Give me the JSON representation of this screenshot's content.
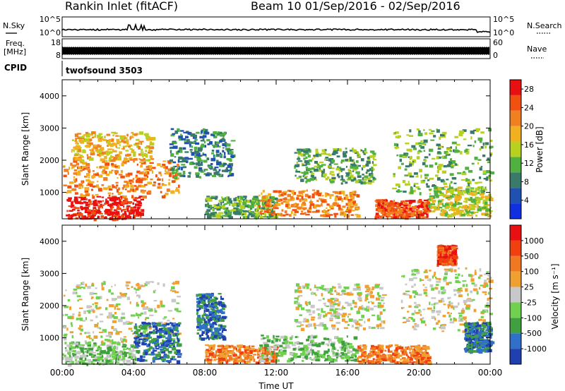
{
  "header": {
    "station": "Rankin Inlet (fitACF)",
    "beam_range": "Beam 10  01/Sep/2016 - 02/Sep/2016"
  },
  "aux_panels": {
    "nsky_label": "N.Sky",
    "nsky_ticks": [
      "10^5",
      "10^0"
    ],
    "nsearch_label": "N.Search",
    "freq_label_1": "Freq.",
    "freq_label_2": "[MHz]",
    "freq_ticks": [
      "18",
      "8"
    ],
    "nave_label": "Nave",
    "nave_ticks": [
      "60",
      "0"
    ],
    "cpid_label": "CPID",
    "cpid_value": "twofsound 3503"
  },
  "chart_data": [
    {
      "type": "heatmap",
      "quantity": "Power",
      "ylabel": "Slant Range [km]",
      "ylim": [
        180,
        4500
      ],
      "yticks": [
        "1000",
        "2000",
        "3000",
        "4000"
      ],
      "xlim_hours": [
        0,
        24
      ],
      "colorbar_label": "Power [dB]",
      "colorbar_ticks": [
        "4",
        "8",
        "12",
        "16",
        "20",
        "24",
        "28"
      ],
      "colorbar_range": [
        0,
        30
      ],
      "colors": [
        "#1030e0",
        "#2050b0",
        "#3a7a6a",
        "#50b040",
        "#b8d020",
        "#f0b020",
        "#f08020",
        "#f05010",
        "#e81010"
      ],
      "echo_regions": [
        {
          "t": [
            0.2,
            4.4
          ],
          "r": [
            200,
            900
          ],
          "level": 8
        },
        {
          "t": [
            0.0,
            6.5
          ],
          "r": [
            900,
            2000
          ],
          "level": 6
        },
        {
          "t": [
            0.5,
            5.0
          ],
          "r": [
            2000,
            2900
          ],
          "level": 5
        },
        {
          "t": [
            6.0,
            9.5
          ],
          "r": [
            1500,
            3000
          ],
          "level": 2
        },
        {
          "t": [
            8.0,
            12.0
          ],
          "r": [
            250,
            900
          ],
          "level": 3
        },
        {
          "t": [
            11.0,
            16.5
          ],
          "r": [
            300,
            1100
          ],
          "level": 6
        },
        {
          "t": [
            13.0,
            17.5
          ],
          "r": [
            1300,
            2400
          ],
          "level": 3
        },
        {
          "t": [
            17.5,
            20.5
          ],
          "r": [
            250,
            800
          ],
          "level": 7
        },
        {
          "t": [
            18.5,
            24.0
          ],
          "r": [
            1000,
            3000
          ],
          "level": 3
        },
        {
          "t": [
            20.5,
            24.0
          ],
          "r": [
            300,
            1200
          ],
          "level": 4
        }
      ]
    },
    {
      "type": "heatmap",
      "quantity": "Velocity",
      "ylabel": "Slant Range [km]",
      "ylim": [
        180,
        4500
      ],
      "yticks": [
        "1000",
        "2000",
        "3000",
        "4000"
      ],
      "xlabel": "Time UT",
      "xticks": [
        "00:00",
        "04:00",
        "08:00",
        "12:00",
        "16:00",
        "20:00",
        "00:00"
      ],
      "xlim_hours": [
        0,
        24
      ],
      "colorbar_label": "Velocity [m s⁻¹]",
      "colorbar_ticks": [
        "1000",
        "500",
        "100",
        "25",
        "-25",
        "-100",
        "-500",
        "-1000"
      ],
      "colors": [
        "#2040b0",
        "#3070c8",
        "#40a040",
        "#70d050",
        "#c8c8c8",
        "#f0a030",
        "#f07820",
        "#f04010",
        "#e81010"
      ],
      "echo_regions": [
        {
          "t": [
            0.0,
            4.0
          ],
          "r": [
            200,
            900
          ],
          "level": 3
        },
        {
          "t": [
            0.0,
            6.5
          ],
          "r": [
            900,
            2800
          ],
          "level": 4
        },
        {
          "t": [
            4.0,
            6.5
          ],
          "r": [
            300,
            1500
          ],
          "level": 1
        },
        {
          "t": [
            7.5,
            9.0
          ],
          "r": [
            1000,
            2400
          ],
          "level": 1
        },
        {
          "t": [
            8.0,
            12.0
          ],
          "r": [
            250,
            800
          ],
          "level": 6
        },
        {
          "t": [
            11.0,
            16.5
          ],
          "r": [
            300,
            1100
          ],
          "level": 3
        },
        {
          "t": [
            13.0,
            18.0
          ],
          "r": [
            1300,
            2700
          ],
          "level": 4
        },
        {
          "t": [
            16.5,
            20.5
          ],
          "r": [
            250,
            800
          ],
          "level": 6
        },
        {
          "t": [
            19.0,
            24.0
          ],
          "r": [
            1200,
            3200
          ],
          "level": 4
        },
        {
          "t": [
            21.0,
            22.0
          ],
          "r": [
            3300,
            3900
          ],
          "level": 7
        },
        {
          "t": [
            22.5,
            24.0
          ],
          "r": [
            600,
            1500
          ],
          "level": 1
        }
      ]
    }
  ]
}
